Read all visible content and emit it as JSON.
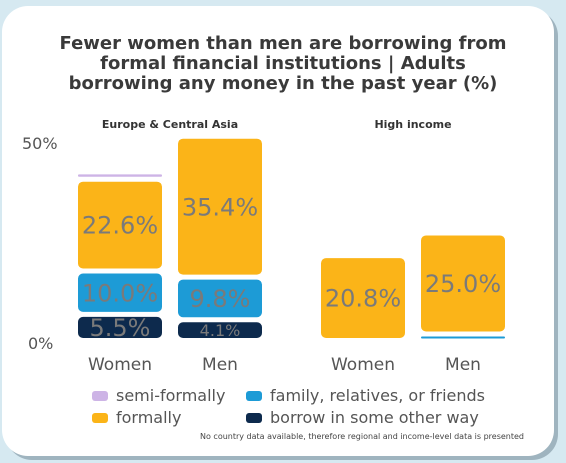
{
  "title_lines": [
    "Fewer women than men are borrowing from",
    "formal financial institutions | Adults",
    "borrowing any money in the past year (%)"
  ],
  "note": "No country data available, therefore regional and income-level data is presented",
  "colors": {
    "semi_formally": "#cdb4e6",
    "family": "#1d9bd6",
    "formally": "#fbb418",
    "other": "#0d2a4d",
    "label_text": "#7a7a7a"
  },
  "legend": [
    {
      "key": "semi_formally",
      "label": "semi-formally"
    },
    {
      "key": "family",
      "label": "family, relatives, or friends"
    },
    {
      "key": "formally",
      "label": "formally"
    },
    {
      "key": "other",
      "label": "borrow in some other way"
    }
  ],
  "chart_data": {
    "type": "bar",
    "stacked": true,
    "ylim": [
      0,
      50
    ],
    "yticks": [
      "0%",
      "50%"
    ],
    "groups": [
      {
        "name": "Europe & Central Asia",
        "categories": [
          "Women",
          "Men"
        ],
        "series": [
          {
            "key": "other",
            "values": [
              5.5,
              4.1
            ],
            "labels": [
              "5.5%",
              "4.1%"
            ]
          },
          {
            "key": "family",
            "values": [
              10.0,
              9.8
            ],
            "labels": [
              "10.0%",
              "9.8%"
            ]
          },
          {
            "key": "formally",
            "values": [
              22.6,
              35.4
            ],
            "labels": [
              "22.6%",
              "35.4%"
            ]
          },
          {
            "key": "semi_formally",
            "values": [
              0.6,
              0
            ],
            "labels": [
              "",
              ""
            ]
          }
        ]
      },
      {
        "name": "High income",
        "categories": [
          "Women",
          "Men"
        ],
        "series": [
          {
            "key": "other",
            "values": [
              0,
              0
            ],
            "labels": [
              "",
              ""
            ]
          },
          {
            "key": "family",
            "values": [
              0,
              0.4
            ],
            "labels": [
              "",
              ""
            ]
          },
          {
            "key": "formally",
            "values": [
              20.8,
              25.0
            ],
            "labels": [
              "20.8%",
              "25.0%"
            ]
          },
          {
            "key": "semi_formally",
            "values": [
              0,
              0
            ],
            "labels": [
              "",
              ""
            ]
          }
        ]
      }
    ]
  }
}
